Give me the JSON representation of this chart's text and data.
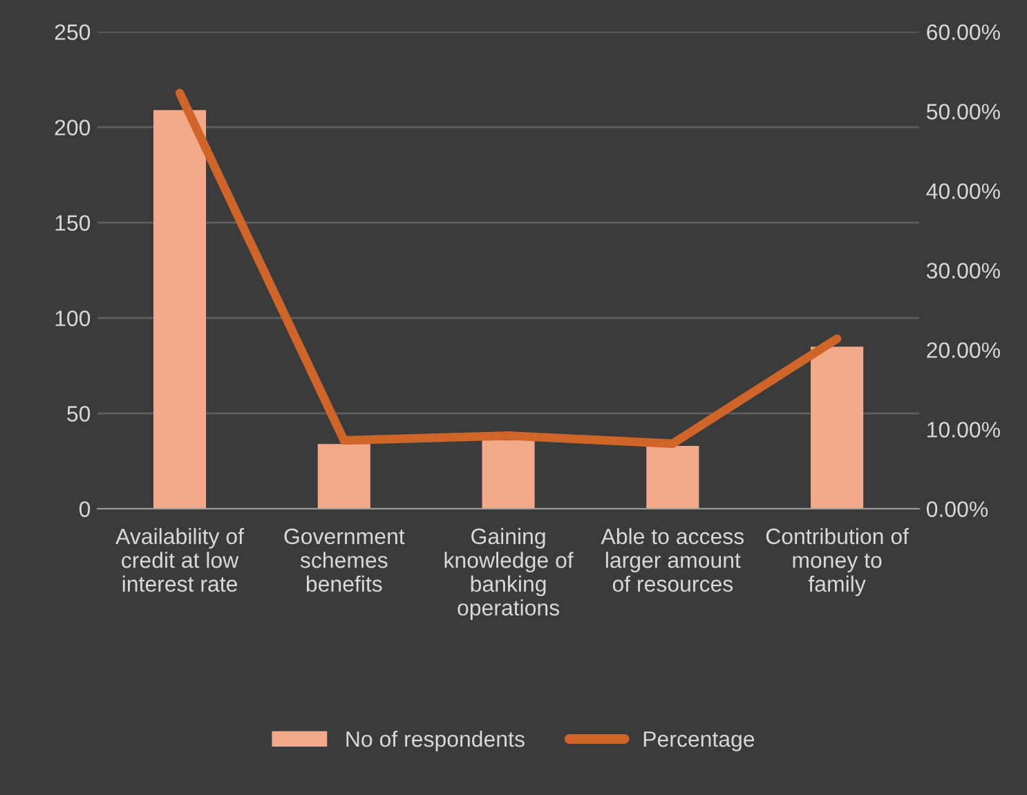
{
  "chart_data": {
    "type": "bar",
    "categories": [
      "Availability of\ncredit at low\ninterest rate",
      "Government\nschemes\nbenefits",
      "Gaining\nknowledge of\nbanking\noperations",
      "Able to access\nlarger amount\nof resources",
      "Contribution of\nmoney to\nfamily"
    ],
    "series": [
      {
        "name": "No of respondents",
        "color": "#f2a98a",
        "values": [
          209,
          34,
          36,
          33,
          85
        ]
      },
      {
        "name": "Percentage",
        "type": "line",
        "axis": "y2",
        "color": "#d0652a",
        "values": [
          52.3,
          8.6,
          9.2,
          8.2,
          21.4
        ]
      }
    ],
    "ylim": [
      0,
      250
    ],
    "yticks": [
      0,
      50,
      100,
      150,
      200,
      250
    ],
    "y2lim": [
      0,
      60
    ],
    "y2ticks": [
      {
        "value": 0,
        "label": "0.00%"
      },
      {
        "value": 10,
        "label": "10.00%"
      },
      {
        "value": 20,
        "label": "20.00%"
      },
      {
        "value": 30,
        "label": "30.00%"
      },
      {
        "value": 40,
        "label": "40.00%"
      },
      {
        "value": 50,
        "label": "50.00%"
      },
      {
        "value": 60,
        "label": "60.00%"
      }
    ],
    "grid": "y",
    "legend": "bottom"
  }
}
